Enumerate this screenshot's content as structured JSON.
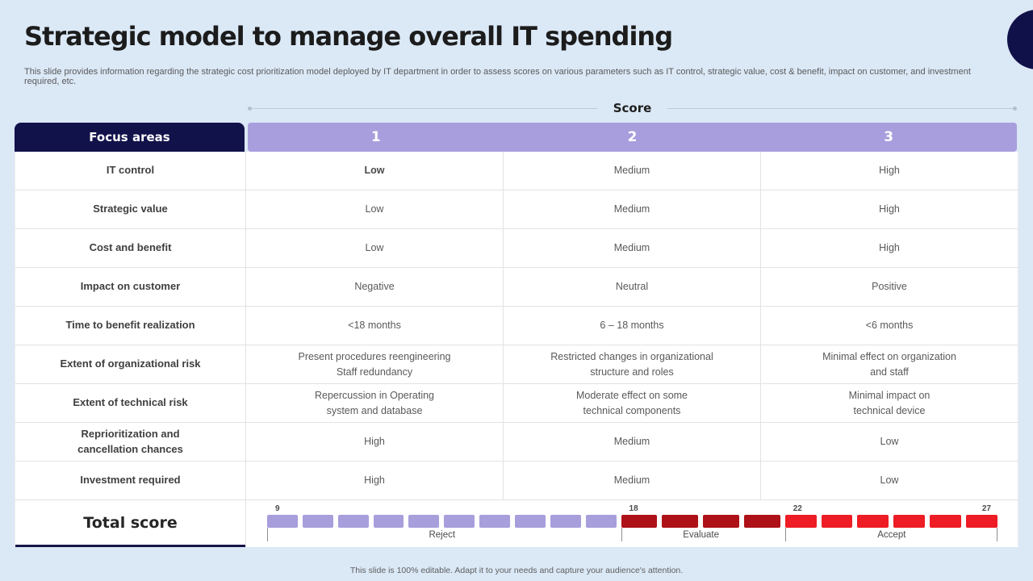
{
  "slide": {
    "title": "Strategic model to manage overall IT spending",
    "subtitle": "This slide provides information regarding the strategic cost prioritization model deployed by IT department in order to assess scores on various parameters such as IT control, strategic value, cost & benefit, impact on customer, and investment required, etc.",
    "footer": "This slide is 100% editable. Adapt it to your needs and capture your audience's attention."
  },
  "table": {
    "score_header": "Score",
    "focus_header": "Focus areas",
    "score_columns": [
      "1",
      "2",
      "3"
    ],
    "rows": [
      {
        "label": "IT control",
        "values": [
          "Low",
          "Medium",
          "High"
        ]
      },
      {
        "label": "Strategic value",
        "values": [
          "Low",
          "Medium",
          "High"
        ]
      },
      {
        "label": "Cost and benefit",
        "values": [
          "Low",
          "Medium",
          "High"
        ]
      },
      {
        "label": "Impact on customer",
        "values": [
          "Negative",
          "Neutral",
          "Positive"
        ]
      },
      {
        "label": "Time to benefit realization",
        "values": [
          "<18 months",
          "6 – 18 months",
          "<6 months"
        ]
      },
      {
        "label": "Extent of organizational risk",
        "values": [
          "Present procedures reengineering\nStaff redundancy",
          "Restricted changes in organizational\nstructure and roles",
          "Minimal effect on organization\nand staff"
        ]
      },
      {
        "label": "Extent of technical risk",
        "values": [
          "Repercussion in Operating\nsystem and database",
          "Moderate effect on some\ntechnical components",
          "Minimal impact on\ntechnical device"
        ]
      },
      {
        "label": "Reprioritization and\ncancellation chances",
        "values": [
          "High",
          "Medium",
          "Low"
        ]
      },
      {
        "label": "Investment required",
        "values": [
          "High",
          "Medium",
          "Low"
        ]
      }
    ],
    "total_label": "Total score"
  },
  "scale": {
    "sections": [
      {
        "label": "Reject",
        "start_value": "9",
        "segments": 10,
        "color": "#a79edc"
      },
      {
        "label": "Evaluate",
        "start_value": "18",
        "segments": 4,
        "color": "#ae1117"
      },
      {
        "label": "Accept",
        "start_value": "22",
        "segments": 6,
        "color": "#ee1c25"
      }
    ],
    "end_value": "27"
  },
  "colors": {
    "background": "#dbe8f6",
    "navy": "#12124b",
    "purple_header": "#a89edd",
    "purple_segment": "#a79edc",
    "dark_red": "#ae1117",
    "bright_red": "#ee1c25"
  }
}
